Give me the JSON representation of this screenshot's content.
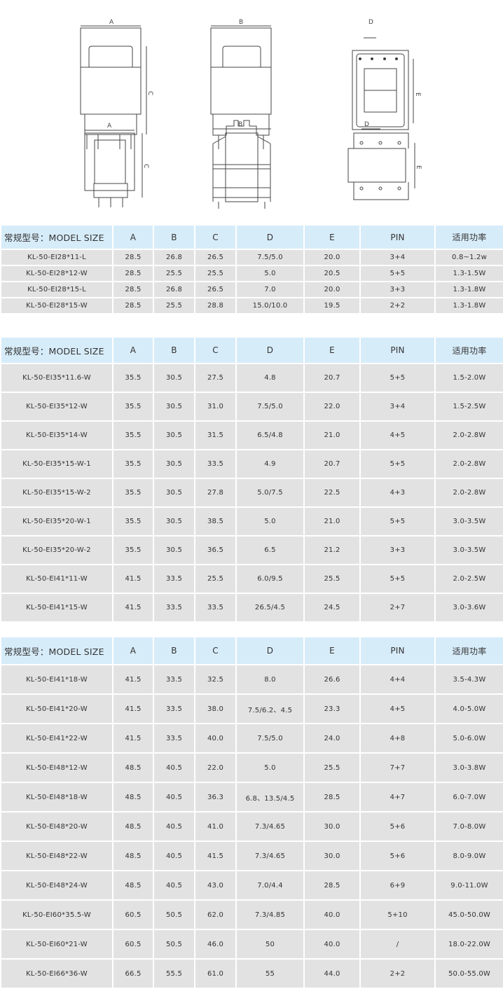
{
  "drawing_labels": {
    "a": "A",
    "b": "B",
    "c": "C",
    "d": "D",
    "e": "E"
  },
  "colors": {
    "header_bg": "#d7ecf9",
    "row_bg": "#e2e2e2"
  },
  "headers": [
    "常规型号：MODEL SIZE",
    "A",
    "B",
    "C",
    "D",
    "E",
    "PIN",
    "适用功率"
  ],
  "tables": [
    {
      "rows": [
        [
          "KL-50-EI28*11-L",
          "28.5",
          "26.8",
          "26.5",
          "7.5/5.0",
          "20.0",
          "3+4",
          "0.8~1.2w"
        ],
        [
          "KL-50-EI28*12-W",
          "28.5",
          "25.5",
          "25.5",
          "5.0",
          "20.5",
          "5+5",
          "1.3-1.5W"
        ],
        [
          "KL-50-EI28*15-L",
          "28.5",
          "26.8",
          "26.5",
          "7.0",
          "20.0",
          "3+3",
          "1.3-1.8W"
        ],
        [
          "KL-50-EI28*15-W",
          "28.5",
          "25.5",
          "28.8",
          "15.0/10.0",
          "19.5",
          "2+2",
          "1.3-1.8W"
        ]
      ]
    },
    {
      "rows": [
        [
          "KL-50-EI35*11.6-W",
          "35.5",
          "30.5",
          "27.5",
          "4.8",
          "20.7",
          "5+5",
          "1.5-2.0W"
        ],
        [
          "KL-50-EI35*12-W",
          "35.5",
          "30.5",
          "31.0",
          "7.5/5.0",
          "22.0",
          "3+4",
          "1.5-2.5W"
        ],
        [
          "KL-50-EI35*14-W",
          "35.5",
          "30.5",
          "31.5",
          "6.5/4.8",
          "21.0",
          "4+5",
          "2.0-2.8W"
        ],
        [
          "KL-50-EI35*15-W-1",
          "35.5",
          "30.5",
          "33.5",
          "4.9",
          "20.7",
          "5+5",
          "2.0-2.8W"
        ],
        [
          "KL-50-EI35*15-W-2",
          "35.5",
          "30.5",
          "27.8",
          "5.0/7.5",
          "22.5",
          "4+3",
          "2.0-2.8W"
        ],
        [
          "KL-50-EI35*20-W-1",
          "35.5",
          "30.5",
          "38.5",
          "5.0",
          "21.0",
          "5+5",
          "3.0-3.5W"
        ],
        [
          "KL-50-EI35*20-W-2",
          "35.5",
          "30.5",
          "36.5",
          "6.5",
          "21.2",
          "3+3",
          "3.0-3.5W"
        ],
        [
          "KL-50-EI41*11-W",
          "41.5",
          "33.5",
          "25.5",
          "6.0/9.5",
          "25.5",
          "5+5",
          "2.0-2.5W"
        ],
        [
          "KL-50-EI41*15-W",
          "41.5",
          "33.5",
          "33.5",
          "26.5/4.5",
          "24.5",
          "2+7",
          "3.0-3.6W"
        ]
      ]
    },
    {
      "rows": [
        [
          "KL-50-EI41*18-W",
          "41.5",
          "33.5",
          "32.5",
          "8.0",
          "26.6",
          "4+4",
          "3.5-4.3W"
        ],
        [
          "KL-50-EI41*20-W",
          "41.5",
          "33.5",
          "38.0",
          "7.5/6.2、4.5",
          "23.3",
          "4+5",
          "4.0-5.0W"
        ],
        [
          "KL-50-EI41*22-W",
          "41.5",
          "33.5",
          "40.0",
          "7.5/5.0",
          "24.0",
          "4+8",
          "5.0-6.0W"
        ],
        [
          "KL-50-EI48*12-W",
          "48.5",
          "40.5",
          "22.0",
          "5.0",
          "25.5",
          "7+7",
          "3.0-3.8W"
        ],
        [
          "KL-50-EI48*18-W",
          "48.5",
          "40.5",
          "36.3",
          "6.8、13.5/4.5",
          "28.5",
          "4+7",
          "6.0-7.0W"
        ],
        [
          "KL-50-EI48*20-W",
          "48.5",
          "40.5",
          "41.0",
          "7.3/4.65",
          "30.0",
          "5+6",
          "7.0-8.0W"
        ],
        [
          "KL-50-EI48*22-W",
          "48.5",
          "40.5",
          "41.5",
          "7.3/4.65",
          "30.0",
          "5+6",
          "8.0-9.0W"
        ],
        [
          "KL-50-EI48*24-W",
          "48.5",
          "40.5",
          "43.0",
          "7.0/4.4",
          "28.5",
          "6+9",
          "9.0-11.0W"
        ],
        [
          "KL-50-EI60*35.5-W",
          "60.5",
          "50.5",
          "62.0",
          "7.3/4.85",
          "40.0",
          "5+10",
          "45.0-50.0W"
        ],
        [
          "KL-50-EI60*21-W",
          "60.5",
          "50.5",
          "46.0",
          "50",
          "40.0",
          "/",
          "18.0-22.0W"
        ],
        [
          "KL-50-EI66*36-W",
          "66.5",
          "55.5",
          "61.0",
          "55",
          "44.0",
          "2+2",
          "50.0-55.0W"
        ]
      ]
    }
  ]
}
